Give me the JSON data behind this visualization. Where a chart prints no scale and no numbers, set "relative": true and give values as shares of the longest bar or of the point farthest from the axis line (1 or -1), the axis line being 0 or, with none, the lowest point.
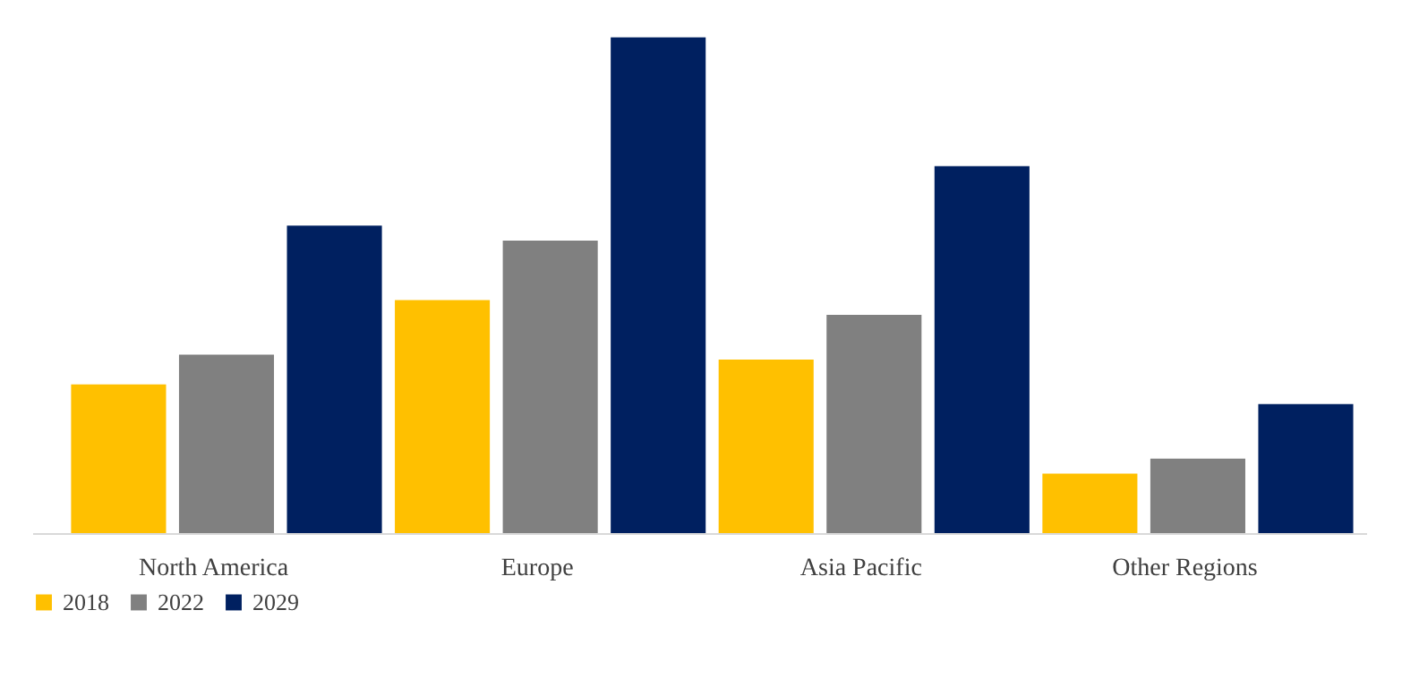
{
  "chart_data": {
    "type": "bar",
    "relative": true,
    "legend": "bottom",
    "grid": false,
    "categories": [
      "North America",
      "Europe",
      "Asia Pacific",
      "Other Regions"
    ],
    "series": [
      {
        "name": "2018",
        "color": "#ffc000",
        "values": [
          0.3,
          0.47,
          0.35,
          0.12
        ]
      },
      {
        "name": "2022",
        "color": "#808080",
        "values": [
          0.36,
          0.59,
          0.44,
          0.15
        ]
      },
      {
        "name": "2029",
        "color": "#002060",
        "values": [
          0.62,
          1,
          0.74,
          0.26
        ]
      }
    ]
  }
}
